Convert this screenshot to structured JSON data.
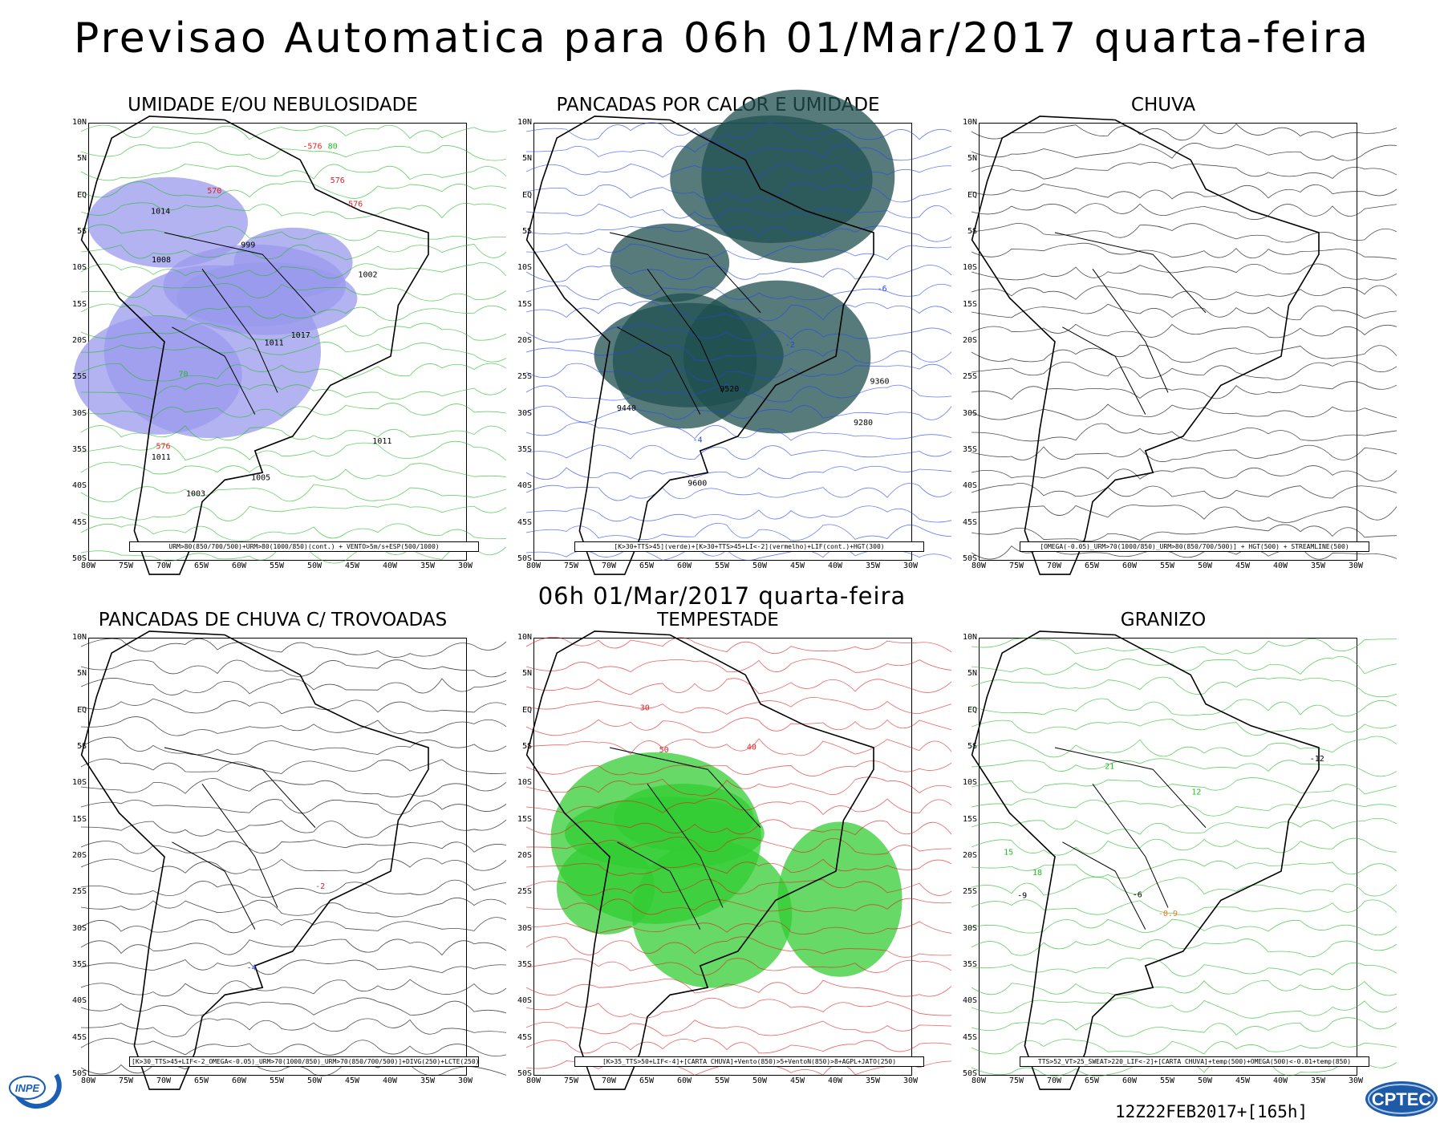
{
  "header": {
    "title": "Previsao Automatica  para 06h 01/Mar/2017 quarta-feira",
    "subtitle": "06h 01/Mar/2017 quarta-feira"
  },
  "axes": {
    "lat_labels": [
      "10N",
      "5N",
      "EQ",
      "5S",
      "10S",
      "15S",
      "20S",
      "25S",
      "30S",
      "35S",
      "40S",
      "45S",
      "50S"
    ],
    "lon_labels": [
      "80W",
      "75W",
      "70W",
      "65W",
      "60W",
      "55W",
      "50W",
      "45W",
      "40W",
      "35W",
      "30W"
    ]
  },
  "panels": [
    {
      "id": "umidade",
      "title": "UMIDADE E/OU NEBULOSIDADE",
      "legend": "URM>80(850/700/500)+URM>80(1000/850)(cont.) + VENTO>5m/s+ESP(500/1000)",
      "fill_color": "#9a9aee",
      "contour_color": "#22bb22",
      "contour_labels": [
        {
          "text": "1011",
          "color": "#000"
        },
        {
          "text": "1011",
          "color": "#000"
        },
        {
          "text": "1011",
          "color": "#000"
        },
        {
          "text": "576",
          "color": "#e02020"
        },
        {
          "text": "576",
          "color": "#e02020"
        },
        {
          "text": "576",
          "color": "#e02020"
        },
        {
          "text": "80",
          "color": "#22bb22"
        },
        {
          "text": "70",
          "color": "#22bb22"
        },
        {
          "text": "1008",
          "color": "#000"
        },
        {
          "text": "1005",
          "color": "#000"
        },
        {
          "text": "1017",
          "color": "#000"
        },
        {
          "text": "1002",
          "color": "#000"
        },
        {
          "text": "570",
          "color": "#e02020"
        },
        {
          "text": "1014",
          "color": "#000"
        },
        {
          "text": "999",
          "color": "#000"
        },
        {
          "text": "-576",
          "color": "#e02020"
        },
        {
          "text": "1003",
          "color": "#000"
        }
      ]
    },
    {
      "id": "pancadas-calor",
      "title": "PANCADAS POR CALOR E UMIDADE",
      "legend": "[K>30+TTS>45](verde)+[K>30+TTS>45+LI<-2](vermelho)+LIF(cont.)+HGT(300)",
      "fill_color": "#1f4f4f",
      "contour_color": "#2244ee",
      "contour_labels": [
        {
          "text": "9600",
          "color": "#000"
        },
        {
          "text": "9520",
          "color": "#000"
        },
        {
          "text": "9440",
          "color": "#000"
        },
        {
          "text": "9360",
          "color": "#000"
        },
        {
          "text": "9280",
          "color": "#000"
        },
        {
          "text": "-2",
          "color": "#2244ee"
        },
        {
          "text": "-4",
          "color": "#2244ee"
        },
        {
          "text": "-6",
          "color": "#2244ee"
        }
      ]
    },
    {
      "id": "chuva",
      "title": "CHUVA",
      "legend": "[OMEGA(-0.05)_URM>70(1000/850)_URM>80(850/700/500)] + HGT(500) + STREAMLINE(500)",
      "fill_color": "#ffffff",
      "contour_color": "#000000",
      "contour_labels": []
    },
    {
      "id": "pancadas-trovoadas",
      "title": "PANCADAS DE CHUVA C/ TROVOADAS",
      "legend": "[K>30_TTS>45+LIF<-2_OMEGA<-0.05)_URM>70(1000/850)_URM>70(850/700/500)]+DIVG(250)+LCTE(250)",
      "fill_color": "#ffffff",
      "contour_color": "#2244ee",
      "contour_labels": [
        {
          "text": "-2",
          "color": "#e02020"
        },
        {
          "text": "-4",
          "color": "#2244ee"
        }
      ]
    },
    {
      "id": "tempestade",
      "title": "TEMPESTADE",
      "legend": "[K>35_TTS>50+LIF<-4]+[CARTA CHUVA]+Vento(850)>5+VentoN(850)>8+AGPL+JATO(250)",
      "fill_color": "#33cc33",
      "contour_color": "#e02020",
      "contour_labels": [
        {
          "text": "30",
          "color": "#e02020"
        },
        {
          "text": "40",
          "color": "#e02020"
        },
        {
          "text": "50",
          "color": "#e02020"
        }
      ]
    },
    {
      "id": "granizo",
      "title": "GRANIZO",
      "legend": "TTS>52_VT>25_SWEAT>220_LIF<-2]+[CARTA CHUVA]+temp(500)+OMEGA(500)<-0.01+temp(850)",
      "fill_color": "#ffffff",
      "contour_color": "#22bb22",
      "contour_labels": [
        {
          "text": "15",
          "color": "#22bb22"
        },
        {
          "text": "18",
          "color": "#22bb22"
        },
        {
          "text": "12",
          "color": "#22bb22"
        },
        {
          "text": "21",
          "color": "#22bb22"
        },
        {
          "text": "-6",
          "color": "#000"
        },
        {
          "text": "-9",
          "color": "#000"
        },
        {
          "text": "-12",
          "color": "#000"
        },
        {
          "text": "-0.9",
          "color": "#ee7722"
        }
      ]
    }
  ],
  "footer": {
    "stamp": "12Z22FEB2017+[165h]",
    "logo_left": "INPE",
    "logo_right": "CPTEC"
  }
}
